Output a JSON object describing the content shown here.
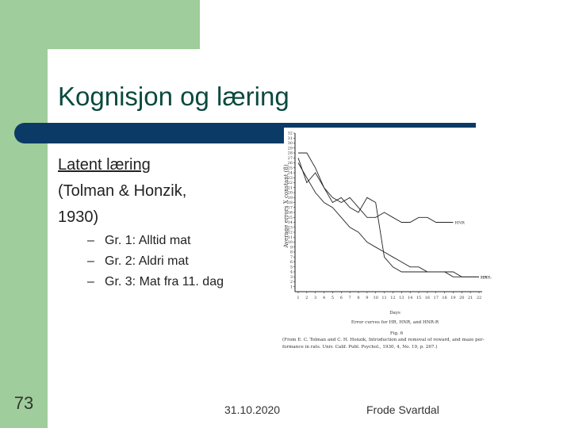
{
  "slide": {
    "title": "Kognisjon og læring",
    "number": "73",
    "date": "31.10.2020",
    "author": "Frode Svartdal"
  },
  "bullet": {
    "line1": "Latent læring",
    "line2": "(Tolman & Honzik,",
    "line3": "1930)"
  },
  "sub_bullets": [
    {
      "dash": "–",
      "text": "Gr. 1: Alltid mat"
    },
    {
      "dash": "–",
      "text": "Gr. 2: Aldri mat"
    },
    {
      "dash": "–",
      "text": "Gr. 3: Mat fra 11. dag"
    }
  ],
  "colors": {
    "green": "#9fcd9b",
    "navy": "#0b3a66",
    "title": "#0b4a3e"
  },
  "chart_data": {
    "type": "line",
    "ylabel": "Average errors X constant (8)",
    "xlabel": "Days",
    "x": [
      1,
      2,
      3,
      4,
      5,
      6,
      7,
      8,
      9,
      10,
      11,
      12,
      13,
      14,
      15,
      16,
      17,
      18,
      19,
      20,
      21,
      22
    ],
    "x_tick_labels": [
      "1",
      "2",
      "3",
      "4",
      "5",
      "6",
      "7",
      "8",
      "9",
      "10",
      "11",
      "12",
      "13",
      "14",
      "15",
      "16",
      "17",
      "18",
      "19",
      "20",
      "21",
      "22"
    ],
    "y_tick_labels": [
      "1",
      "2",
      "3",
      "4",
      "5",
      "6",
      "7",
      "8",
      "9",
      "10",
      "11",
      "12",
      "13",
      "14",
      "15",
      "16",
      "17",
      "18",
      "19",
      "20",
      "21",
      "22",
      "23",
      "24",
      "25",
      "26",
      "27",
      "28",
      "29",
      "30",
      "31",
      "32"
    ],
    "ylim": [
      0,
      32
    ],
    "series": [
      {
        "name": "HNR",
        "values": [
          28,
          28,
          25,
          21,
          19,
          18,
          19,
          17,
          15,
          15,
          16,
          15,
          14,
          14,
          15,
          15,
          14,
          14,
          14,
          null,
          null,
          null
        ]
      },
      {
        "name": "HR",
        "values": [
          26,
          23,
          20,
          18,
          17,
          15,
          13,
          12,
          10,
          9,
          8,
          7,
          6,
          5,
          5,
          4,
          4,
          4,
          3,
          3,
          3,
          3
        ]
      },
      {
        "name": "HNR-R",
        "values": [
          27,
          22,
          24,
          21,
          18,
          19,
          17,
          16,
          19,
          18,
          7,
          5,
          4,
          4,
          4,
          4,
          4,
          4,
          4,
          3,
          3,
          3
        ]
      }
    ],
    "fig_label": "Fig. 6",
    "caption_line1": "Error curves for HR, HNR, and HNR-R",
    "caption_line2": "(From E. C. Tolman and C. H. Honzik, Introduction and removal of reward, and maze per-",
    "caption_line3": "formance in rats. Univ. Calif. Publ. Psychol., 1930, 4, No. 19, p. 267.)",
    "end_labels": [
      "HNR",
      "HR",
      "HNR-R"
    ]
  }
}
